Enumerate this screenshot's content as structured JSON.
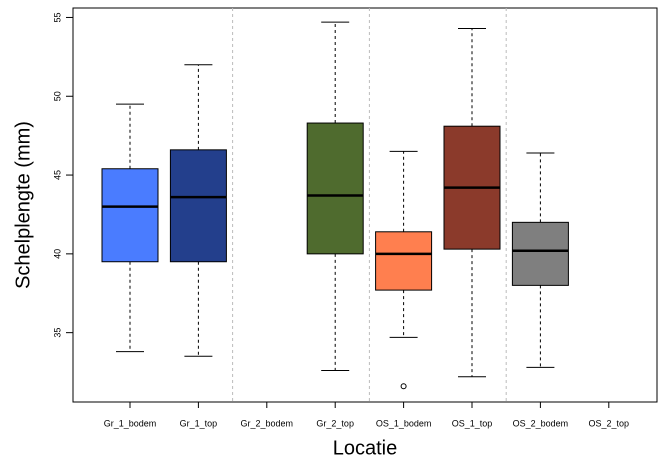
{
  "chart_data": {
    "type": "box",
    "x_label": "Locatie",
    "y_label": "Schelplengte (mm)",
    "categories": [
      "Gr_1_bodem",
      "Gr_1_top",
      "Gr_2_bodem",
      "Gr_2_top",
      "OS_1_bodem",
      "OS_1_top",
      "OS_2_bodem",
      "OS_2_top"
    ],
    "boxes": [
      {
        "whisker_low": 33.8,
        "q1": 39.5,
        "median": 43.0,
        "q3": 45.4,
        "whisker_high": 49.5,
        "color": "#4a7cff",
        "outliers": []
      },
      {
        "whisker_low": 33.5,
        "q1": 39.5,
        "median": 43.6,
        "q3": 46.6,
        "whisker_high": 52.0,
        "color": "#233f8c",
        "outliers": []
      },
      null,
      {
        "whisker_low": 32.6,
        "q1": 40.0,
        "median": 43.7,
        "q3": 48.3,
        "whisker_high": 54.7,
        "color": "#4f6b2e",
        "outliers": []
      },
      {
        "whisker_low": 34.7,
        "q1": 37.7,
        "median": 40.0,
        "q3": 41.4,
        "whisker_high": 46.5,
        "color": "#ff7f4f",
        "outliers": [
          31.6
        ]
      },
      {
        "whisker_low": 32.2,
        "q1": 40.3,
        "median": 44.2,
        "q3": 48.1,
        "whisker_high": 54.3,
        "color": "#8b3a2b",
        "outliers": []
      },
      {
        "whisker_low": 32.8,
        "q1": 38.0,
        "median": 40.2,
        "q3": 42.0,
        "whisker_high": 46.4,
        "color": "#7f7f7f",
        "outliers": []
      },
      null
    ],
    "ylim": [
      30.6,
      55.6
    ],
    "yticks": [
      35,
      40,
      45,
      50,
      55
    ]
  }
}
